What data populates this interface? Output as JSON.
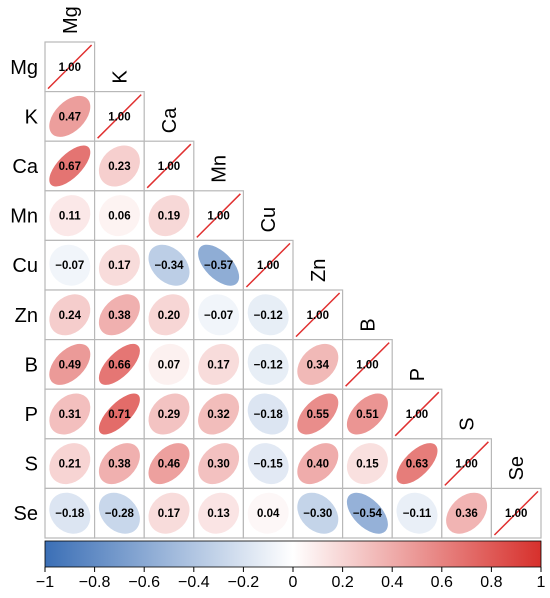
{
  "chart_data": {
    "type": "heatmap",
    "variables": [
      "Mg",
      "K",
      "Ca",
      "Mn",
      "Cu",
      "Zn",
      "B",
      "P",
      "S",
      "Se"
    ],
    "matrix": [
      [
        1.0
      ],
      [
        0.47,
        1.0
      ],
      [
        0.67,
        0.23,
        1.0
      ],
      [
        0.11,
        0.06,
        0.19,
        1.0
      ],
      [
        -0.07,
        0.17,
        -0.34,
        -0.57,
        1.0
      ],
      [
        0.24,
        0.38,
        0.2,
        -0.07,
        -0.12,
        1.0
      ],
      [
        0.49,
        0.66,
        0.07,
        0.17,
        -0.12,
        0.34,
        1.0
      ],
      [
        0.31,
        0.71,
        0.29,
        0.32,
        -0.18,
        0.55,
        0.51,
        1.0
      ],
      [
        0.21,
        0.38,
        0.46,
        0.3,
        -0.15,
        0.4,
        0.15,
        0.63,
        1.0
      ],
      [
        -0.18,
        -0.28,
        0.17,
        0.13,
        0.04,
        -0.3,
        -0.54,
        -0.11,
        0.36,
        1.0
      ]
    ],
    "value_labels": [
      [
        "1.00"
      ],
      [
        "0.47",
        "1.00"
      ],
      [
        "0.67",
        "0.23",
        "1.00"
      ],
      [
        "0.11",
        "0.06",
        "0.19",
        "1.00"
      ],
      [
        "−0.07",
        "0.17",
        "−0.34",
        "−0.57",
        "1.00"
      ],
      [
        "0.24",
        "0.38",
        "0.20",
        "−0.07",
        "−0.12",
        "1.00"
      ],
      [
        "0.49",
        "0.66",
        "0.07",
        "0.17",
        "−0.12",
        "0.34",
        "1.00"
      ],
      [
        "0.31",
        "0.71",
        "0.29",
        "0.32",
        "−0.18",
        "0.55",
        "0.51",
        "1.00"
      ],
      [
        "0.21",
        "0.38",
        "0.46",
        "0.30",
        "−0.15",
        "0.40",
        "0.15",
        "0.63",
        "1.00"
      ],
      [
        "−0.18",
        "−0.28",
        "0.17",
        "0.13",
        "0.04",
        "−0.30",
        "−0.54",
        "−0.11",
        "0.36",
        "1.00"
      ]
    ],
    "shape": "ellipse",
    "layout": "lower-triangle",
    "color_scale": {
      "min": -1,
      "max": 1,
      "colors": [
        "#3b6fb6",
        "#ffffff",
        "#d7302c"
      ],
      "ticks": [
        "−1",
        "−0.8",
        "−0.6",
        "−0.4",
        "−0.2",
        "0",
        "0.2",
        "0.4",
        "0.6",
        "0.8",
        "1"
      ],
      "tick_values": [
        -1,
        -0.8,
        -0.6,
        -0.4,
        -0.2,
        0,
        0.2,
        0.4,
        0.6,
        0.8,
        1
      ],
      "legend_placement": "bottom"
    },
    "diagonal_line_color": "#e03030"
  }
}
